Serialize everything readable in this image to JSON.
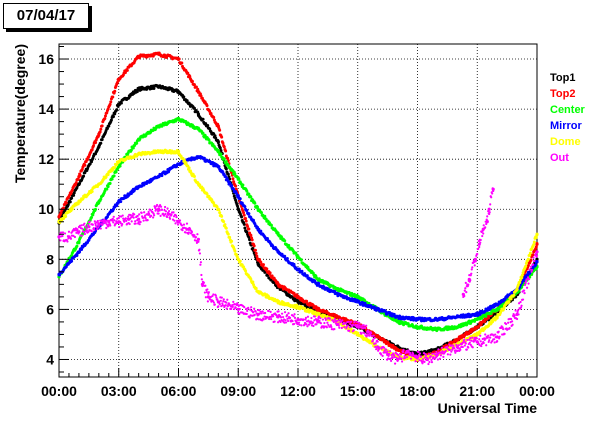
{
  "chart_data": {
    "type": "scatter",
    "title": "07/04/17",
    "xlabel": "Universal Time",
    "ylabel": "Temperature(degree)",
    "xlim": [
      0,
      24
    ],
    "ylim": [
      3.3,
      16.6
    ],
    "x_ticks": [
      0,
      3,
      6,
      9,
      12,
      15,
      18,
      21,
      24
    ],
    "x_tick_labels": [
      "00:00",
      "03:00",
      "06:00",
      "09:00",
      "12:00",
      "15:00",
      "18:00",
      "21:00",
      "00:00"
    ],
    "y_ticks": [
      4,
      6,
      8,
      10,
      12,
      14,
      16
    ],
    "y_tick_labels": [
      "4",
      "6",
      "8",
      "10",
      "12",
      "14",
      "16"
    ],
    "grid": true,
    "legend_position": "right",
    "series": [
      {
        "name": "Top1",
        "color": "#000000",
        "x": [
          0,
          1,
          2,
          3,
          4,
          5,
          6,
          7,
          8,
          9,
          10,
          11,
          12,
          13,
          14,
          15,
          16,
          17,
          18,
          19,
          20,
          21,
          22,
          23,
          24
        ],
        "y": [
          9.5,
          11.0,
          12.5,
          14.2,
          14.8,
          14.9,
          14.7,
          13.8,
          12.7,
          10.0,
          7.8,
          6.9,
          6.3,
          5.9,
          5.6,
          5.3,
          4.9,
          4.5,
          4.2,
          4.4,
          4.8,
          5.3,
          5.9,
          6.6,
          8.0
        ]
      },
      {
        "name": "Top2",
        "color": "#ff0000",
        "x": [
          0,
          1,
          2,
          3,
          4,
          5,
          6,
          7,
          8,
          9,
          10,
          11,
          12,
          13,
          14,
          15,
          16,
          17,
          18,
          19,
          20,
          21,
          22,
          23,
          24
        ],
        "y": [
          9.7,
          11.3,
          13.0,
          15.2,
          16.1,
          16.2,
          16.0,
          14.7,
          13.3,
          10.5,
          8.0,
          7.0,
          6.5,
          6.0,
          5.7,
          5.4,
          4.9,
          4.4,
          4.0,
          4.3,
          4.8,
          5.3,
          6.0,
          6.7,
          8.6
        ]
      },
      {
        "name": "Center",
        "color": "#00ff00",
        "x": [
          0,
          1,
          2,
          3,
          4,
          5,
          6,
          7,
          8,
          9,
          10,
          11,
          12,
          13,
          14,
          15,
          16,
          17,
          18,
          19,
          20,
          21,
          22,
          23,
          24
        ],
        "y": [
          7.3,
          8.7,
          10.3,
          11.7,
          12.8,
          13.3,
          13.6,
          13.2,
          12.3,
          11.2,
          10.0,
          9.0,
          8.1,
          7.2,
          6.8,
          6.5,
          6.0,
          5.5,
          5.3,
          5.2,
          5.3,
          5.6,
          6.0,
          6.7,
          7.7
        ]
      },
      {
        "name": "Mirror",
        "color": "#0000ff",
        "x": [
          0,
          1,
          2,
          3,
          4,
          5,
          6,
          7,
          8,
          9,
          10,
          11,
          12,
          13,
          14,
          15,
          16,
          17,
          18,
          19,
          20,
          21,
          22,
          23,
          24
        ],
        "y": [
          7.4,
          8.3,
          9.3,
          10.3,
          10.9,
          11.3,
          11.8,
          12.1,
          11.7,
          10.5,
          9.2,
          8.3,
          7.6,
          7.0,
          6.6,
          6.3,
          6.0,
          5.7,
          5.6,
          5.6,
          5.7,
          5.8,
          6.2,
          6.8,
          7.9
        ]
      },
      {
        "name": "Dome",
        "color": "#ffff00",
        "x": [
          0,
          1,
          2,
          3,
          4,
          5,
          6,
          7,
          8,
          9,
          10,
          11,
          12,
          13,
          14,
          15,
          16,
          17,
          18,
          19,
          20,
          21,
          22,
          23,
          24
        ],
        "y": [
          9.5,
          10.3,
          11.0,
          11.9,
          12.2,
          12.3,
          12.3,
          11.0,
          10.0,
          8.0,
          6.7,
          6.3,
          6.1,
          5.8,
          5.5,
          5.0,
          4.5,
          4.1,
          4.0,
          4.2,
          4.6,
          5.0,
          5.7,
          6.8,
          9.0
        ]
      },
      {
        "name": "Out",
        "color": "#ff00ff",
        "x": [
          0,
          0.5,
          1,
          1.5,
          2,
          2.5,
          3,
          3.5,
          4,
          4.5,
          5,
          5.5,
          6,
          6.5,
          7,
          7.2,
          7.5,
          8,
          9,
          10,
          11,
          12,
          13,
          14,
          15,
          15.5,
          16,
          16.5,
          17,
          17.5,
          18,
          18.5,
          19,
          20,
          21,
          22,
          23,
          24
        ],
        "y": [
          8.9,
          8.9,
          9.1,
          9.3,
          9.4,
          9.5,
          9.5,
          9.6,
          9.6,
          9.8,
          10.0,
          9.8,
          9.5,
          9.2,
          8.8,
          7.0,
          6.5,
          6.3,
          6.0,
          5.8,
          5.7,
          5.6,
          5.5,
          5.4,
          5.3,
          5.1,
          4.5,
          4.2,
          4.0,
          4.3,
          4.1,
          4.0,
          4.2,
          4.5,
          4.7,
          4.9,
          5.8,
          8.3
        ]
      },
      {
        "name": "",
        "color": "#ff00ff",
        "x": [
          20.3,
          20.6,
          20.9,
          21.1,
          21.3,
          21.5,
          21.6,
          21.8
        ],
        "y": [
          6.6,
          7.2,
          8.0,
          8.6,
          9.2,
          9.5,
          10.0,
          10.8
        ]
      }
    ]
  }
}
